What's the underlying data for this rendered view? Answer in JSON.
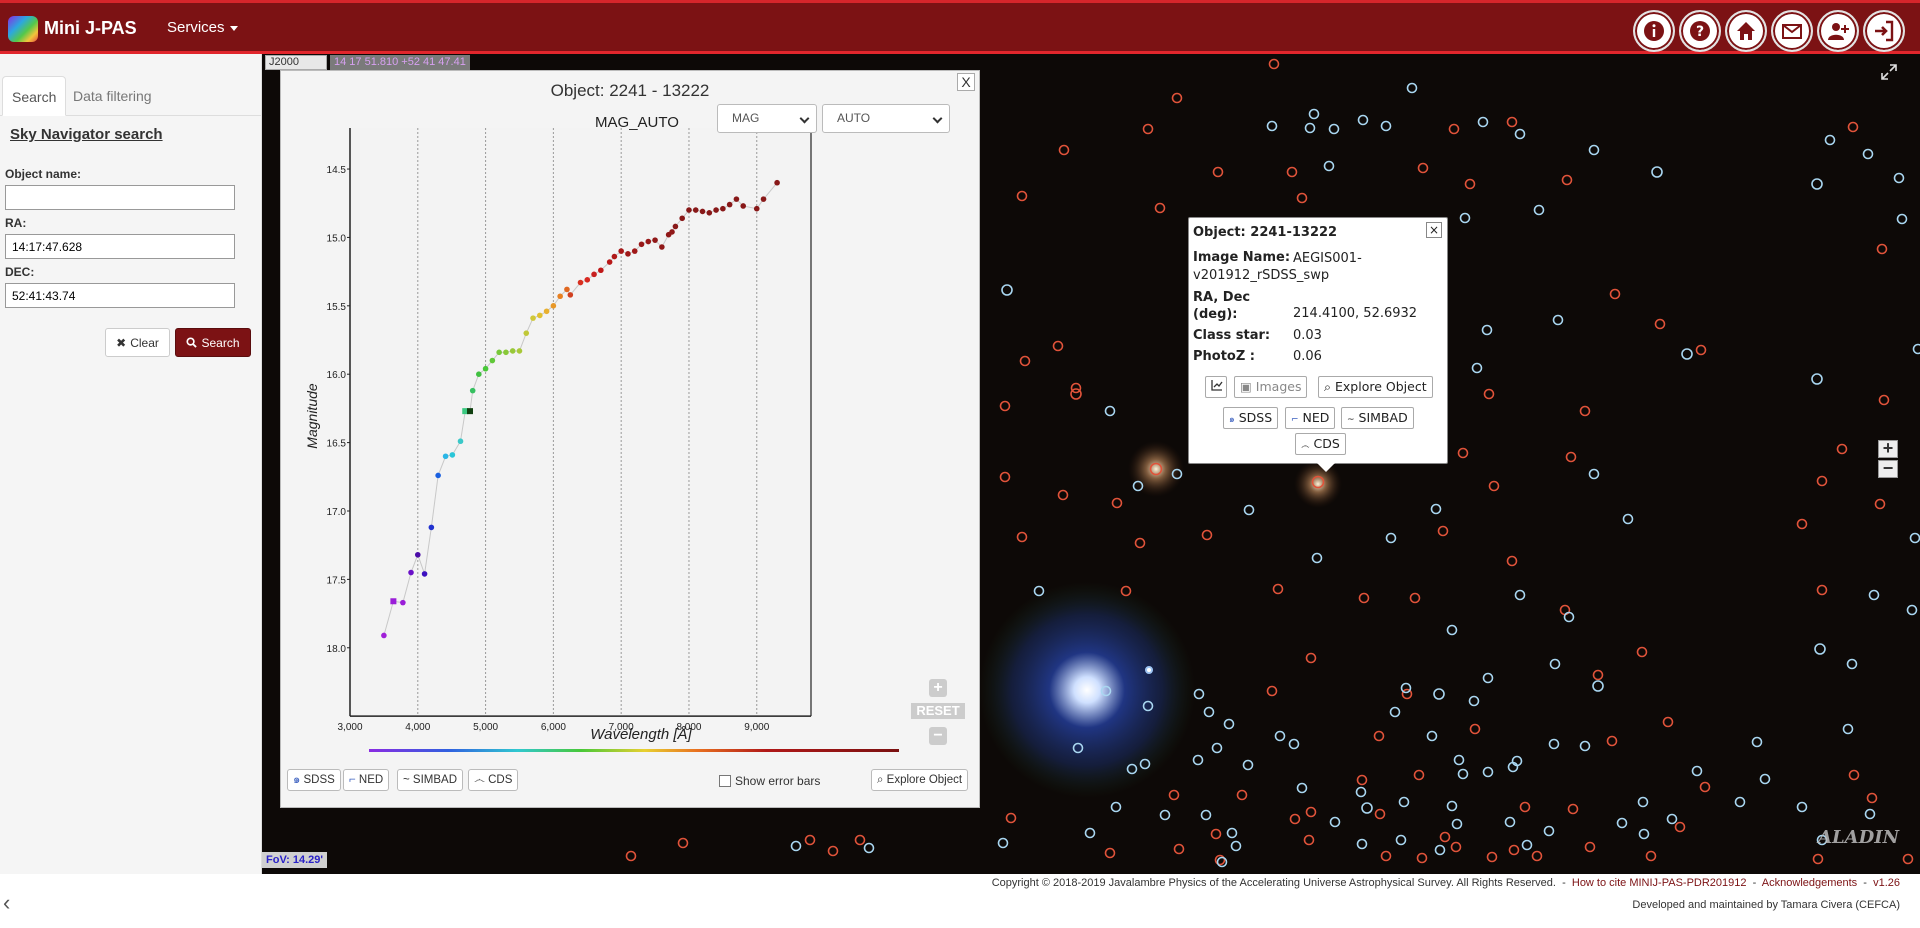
{
  "header": {
    "app_title": "Mini J-PAS",
    "services_label": "Services",
    "buttons": [
      {
        "name": "info-icon"
      },
      {
        "name": "help-icon"
      },
      {
        "name": "home-icon"
      },
      {
        "name": "mail-icon"
      },
      {
        "name": "add-user-icon"
      },
      {
        "name": "login-icon"
      }
    ]
  },
  "sidebar": {
    "tabs": [
      "Search",
      "Data filtering"
    ],
    "title": "Sky Navigator search",
    "object_name_label": "Object name:",
    "object_name_value": "",
    "ra_label": "RA:",
    "ra_value": "14:17:47.628",
    "dec_label": "DEC:",
    "dec_value": "52:41:43.74",
    "clear_label": "Clear",
    "search_label": "Search"
  },
  "sky": {
    "frame": "J2000",
    "cursor_coords": "14 17 51.810 +52 41 47.41",
    "fov": "FoV: 14.29'",
    "aladin_logo": "ALADIN"
  },
  "chart_popup": {
    "close_label": "X",
    "title": "Object: 2241 - 13222",
    "select_type": "MAG",
    "select_aperture": "AUTO",
    "reset_label": "RESET",
    "buttons": [
      "SDSS",
      "NED",
      "SIMBAD",
      "CDS"
    ],
    "show_error_bars_label": "Show error bars",
    "explore_label": "Explore Object"
  },
  "chart_data": {
    "type": "scatter",
    "title": "MAG_AUTO",
    "xlabel": "Wavelength [Å]",
    "ylabel": "Magnitude",
    "xlim": [
      3000,
      10000
    ],
    "ylim": [
      14.2,
      18.5
    ],
    "y_inverted": true,
    "grid": "x-only",
    "x_ticks": [
      "3,000",
      "4,000",
      "5,000",
      "6,000",
      "7,000",
      "8,000",
      "9,000"
    ],
    "y_ticks": [
      "14.5",
      "15.0",
      "15.5",
      "16.0",
      "16.5",
      "17.0",
      "17.5",
      "18.0"
    ],
    "points": [
      [
        3500,
        17.91,
        "#a020d8"
      ],
      [
        3640,
        17.66,
        "#9a1ed8",
        "square"
      ],
      [
        3780,
        17.67,
        "#9a1ed8"
      ],
      [
        3900,
        17.45,
        "#6a10c8"
      ],
      [
        4000,
        17.32,
        "#4b0ca8"
      ],
      [
        4100,
        17.46,
        "#3c10c0"
      ],
      [
        4200,
        17.12,
        "#2232d0"
      ],
      [
        4300,
        16.74,
        "#1a60e0"
      ],
      [
        4410,
        16.6,
        "#2ab6e6"
      ],
      [
        4510,
        16.59,
        "#2ac6d8"
      ],
      [
        4630,
        16.49,
        "#3ac8c8"
      ],
      [
        4700,
        16.27,
        "#3ac880",
        "square"
      ],
      [
        4770,
        16.27,
        "#104010",
        "square"
      ],
      [
        4810,
        16.12,
        "#36c060"
      ],
      [
        4900,
        16.0,
        "#40c040"
      ],
      [
        5000,
        15.96,
        "#48c838"
      ],
      [
        5100,
        15.9,
        "#60c838"
      ],
      [
        5200,
        15.84,
        "#78c838"
      ],
      [
        5300,
        15.84,
        "#88c838"
      ],
      [
        5400,
        15.83,
        "#98c838"
      ],
      [
        5500,
        15.83,
        "#a8c838"
      ],
      [
        5600,
        15.7,
        "#c0c838"
      ],
      [
        5700,
        15.59,
        "#d0c838"
      ],
      [
        5800,
        15.57,
        "#e0c030"
      ],
      [
        5900,
        15.54,
        "#e8b030"
      ],
      [
        6000,
        15.5,
        "#e89828"
      ],
      [
        6100,
        15.43,
        "#e88020"
      ],
      [
        6200,
        15.38,
        "#e06820"
      ],
      [
        6250,
        15.42,
        "#d04020"
      ],
      [
        6400,
        15.33,
        "#d83020"
      ],
      [
        6500,
        15.31,
        "#d82820"
      ],
      [
        6600,
        15.27,
        "#c82020"
      ],
      [
        6700,
        15.24,
        "#c01818"
      ],
      [
        6830,
        15.18,
        "#b81818"
      ],
      [
        6900,
        15.14,
        "#b01818"
      ],
      [
        7000,
        15.1,
        "#a81818"
      ],
      [
        7100,
        15.12,
        "#a01818"
      ],
      [
        7200,
        15.1,
        "#a01818"
      ],
      [
        7300,
        15.05,
        "#981818"
      ],
      [
        7400,
        15.03,
        "#981818"
      ],
      [
        7500,
        15.02,
        "#901818"
      ],
      [
        7600,
        15.07,
        "#901818"
      ],
      [
        7700,
        14.98,
        "#901818"
      ],
      [
        7750,
        14.96,
        "#901818"
      ],
      [
        7800,
        14.92,
        "#881818"
      ],
      [
        7900,
        14.86,
        "#881818"
      ],
      [
        8000,
        14.8,
        "#881818"
      ],
      [
        8100,
        14.8,
        "#881818"
      ],
      [
        8200,
        14.81,
        "#881818"
      ],
      [
        8300,
        14.82,
        "#881818"
      ],
      [
        8400,
        14.8,
        "#881818"
      ],
      [
        8500,
        14.79,
        "#881818"
      ],
      [
        8600,
        14.76,
        "#881818"
      ],
      [
        8700,
        14.72,
        "#881818"
      ],
      [
        8800,
        14.77,
        "#881818"
      ],
      [
        9000,
        14.79,
        "#881818"
      ],
      [
        9100,
        14.72,
        "#881818"
      ],
      [
        9300,
        14.6,
        "#881818"
      ]
    ]
  },
  "info_popup": {
    "close_label": "×",
    "object_label": "Object: 2241-13222",
    "image_name_label": "Image Name:",
    "image_name_value": "AEGIS001-v201912_rSDSS_swp",
    "radec_label": "RA, Dec (deg):",
    "radec_value": "214.4100, 52.6932",
    "class_star_label": "Class star:",
    "class_star_value": "0.03",
    "photoz_label": "PhotoZ :",
    "photoz_value": "0.06",
    "images_label": "Images",
    "explore_label": "Explore Object",
    "links": [
      "SDSS",
      "NED",
      "SIMBAD",
      "CDS"
    ]
  },
  "footer": {
    "copyright": "Copyright © 2018-2019 Javalambre Physics of the Accelerating Universe Astrophysical Survey. All Rights Reserved.",
    "cite_link": "How to cite MINIJ-PAS-PDR201912",
    "ack_link": "Acknowledgements",
    "version": "v1.26",
    "developed_by": "Developed and maintained by Tamara Civera (CEFCA)"
  }
}
